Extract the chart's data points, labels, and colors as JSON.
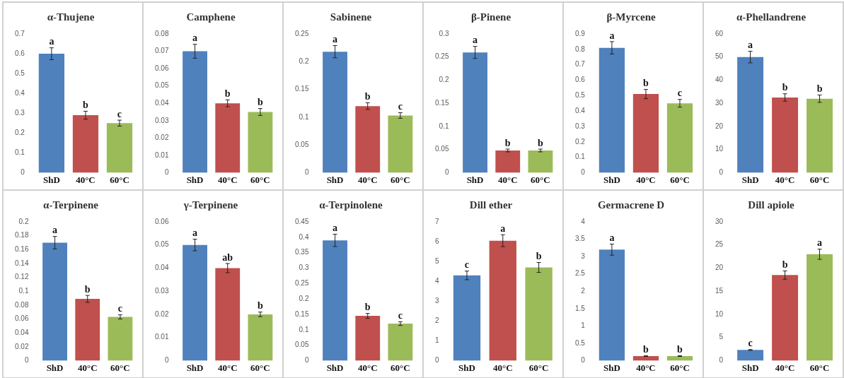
{
  "chart_data": [
    {
      "type": "bar",
      "title": "α-Thujene",
      "categories": [
        "ShD",
        "40°C",
        "60°C"
      ],
      "values": [
        0.6,
        0.29,
        0.25
      ],
      "errors": [
        0.03,
        0.02,
        0.015
      ],
      "colors": [
        "#4f81bd",
        "#c0504d",
        "#9bbb59"
      ],
      "ylim": [
        0,
        0.7
      ],
      "yticks": [
        0,
        0.1,
        0.2,
        0.3,
        0.4,
        0.5,
        0.6,
        0.7
      ],
      "annotations": [
        {
          "text": "a",
          "x": "ShD",
          "y": 0.63
        },
        {
          "text": "b",
          "x": "40°C",
          "y": 0.31
        },
        {
          "text": "c",
          "x": "60°C",
          "y": 0.265
        }
      ]
    },
    {
      "type": "bar",
      "title": "Camphene",
      "categories": [
        "ShD",
        "40°C",
        "60°C"
      ],
      "values": [
        0.07,
        0.04,
        0.035
      ],
      "errors": [
        0.004,
        0.002,
        0.002
      ],
      "colors": [
        "#4f81bd",
        "#c0504d",
        "#9bbb59"
      ],
      "ylim": [
        0,
        0.08
      ],
      "yticks": [
        0,
        0.01,
        0.02,
        0.03,
        0.04,
        0.05,
        0.06,
        0.07,
        0.08
      ],
      "annotations": [
        {
          "text": "a",
          "x": "ShD",
          "y": 0.074
        },
        {
          "text": "b",
          "x": "40°C",
          "y": 0.042
        },
        {
          "text": "b",
          "x": "60°C",
          "y": 0.037
        }
      ]
    },
    {
      "type": "bar",
      "title": "Sabinene",
      "categories": [
        "ShD",
        "40°C",
        "60°C"
      ],
      "values": [
        0.218,
        0.12,
        0.103
      ],
      "errors": [
        0.011,
        0.006,
        0.005
      ],
      "colors": [
        "#4f81bd",
        "#c0504d",
        "#9bbb59"
      ],
      "ylim": [
        0,
        0.25
      ],
      "yticks": [
        0,
        0.05,
        0.1,
        0.15,
        0.2,
        0.25
      ],
      "annotations": [
        {
          "text": "a",
          "x": "ShD",
          "y": 0.229
        },
        {
          "text": "b",
          "x": "40°C",
          "y": 0.126
        },
        {
          "text": "c",
          "x": "60°C",
          "y": 0.108
        }
      ]
    },
    {
      "type": "bar",
      "title": "β-Pinene",
      "categories": [
        "ShD",
        "40°C",
        "60°C"
      ],
      "values": [
        0.26,
        0.048,
        0.048
      ],
      "errors": [
        0.013,
        0.003,
        0.003
      ],
      "colors": [
        "#4f81bd",
        "#c0504d",
        "#9bbb59"
      ],
      "ylim": [
        0,
        0.3
      ],
      "yticks": [
        0,
        0.05,
        0.1,
        0.15,
        0.2,
        0.25,
        0.3
      ],
      "annotations": [
        {
          "text": "a",
          "x": "ShD",
          "y": 0.273
        },
        {
          "text": "b",
          "x": "40°C",
          "y": 0.051
        },
        {
          "text": "b",
          "x": "60°C",
          "y": 0.051
        }
      ]
    },
    {
      "type": "bar",
      "title": "β-Myrcene",
      "categories": [
        "ShD",
        "40°C",
        "60°C"
      ],
      "values": [
        0.81,
        0.51,
        0.45
      ],
      "errors": [
        0.04,
        0.03,
        0.025
      ],
      "colors": [
        "#4f81bd",
        "#c0504d",
        "#9bbb59"
      ],
      "ylim": [
        0,
        0.9
      ],
      "yticks": [
        0,
        0.1,
        0.2,
        0.3,
        0.4,
        0.5,
        0.6,
        0.7,
        0.8,
        0.9
      ],
      "annotations": [
        {
          "text": "a",
          "x": "ShD",
          "y": 0.85
        },
        {
          "text": "b",
          "x": "40°C",
          "y": 0.54
        },
        {
          "text": "c",
          "x": "60°C",
          "y": 0.475
        }
      ]
    },
    {
      "type": "bar",
      "title": "α-Phellandrene",
      "categories": [
        "ShD",
        "40°C",
        "60°C"
      ],
      "values": [
        50,
        32.5,
        32
      ],
      "errors": [
        2.5,
        1.6,
        1.6
      ],
      "colors": [
        "#4f81bd",
        "#c0504d",
        "#9bbb59"
      ],
      "ylim": [
        0,
        60
      ],
      "yticks": [
        0,
        10,
        20,
        30,
        40,
        50,
        60
      ],
      "annotations": [
        {
          "text": "a",
          "x": "ShD",
          "y": 52.5
        },
        {
          "text": "b",
          "x": "40°C",
          "y": 34.1
        },
        {
          "text": "b",
          "x": "60°C",
          "y": 33.6
        }
      ]
    },
    {
      "type": "bar",
      "title": "α-Terpinene",
      "categories": [
        "ShD",
        "40°C",
        "60°C"
      ],
      "values": [
        0.17,
        0.089,
        0.063
      ],
      "errors": [
        0.009,
        0.005,
        0.003
      ],
      "colors": [
        "#4f81bd",
        "#c0504d",
        "#9bbb59"
      ],
      "ylim": [
        0,
        0.2
      ],
      "yticks": [
        0,
        0.02,
        0.04,
        0.06,
        0.08,
        0.1,
        0.12,
        0.14,
        0.16,
        0.18,
        0.2
      ],
      "annotations": [
        {
          "text": "a",
          "x": "ShD",
          "y": 0.179
        },
        {
          "text": "b",
          "x": "40°C",
          "y": 0.094
        },
        {
          "text": "c",
          "x": "60°C",
          "y": 0.066
        }
      ]
    },
    {
      "type": "bar",
      "title": "γ-Terpinene",
      "categories": [
        "ShD",
        "40°C",
        "60°C"
      ],
      "values": [
        0.05,
        0.04,
        0.02
      ],
      "errors": [
        0.0025,
        0.002,
        0.001
      ],
      "colors": [
        "#4f81bd",
        "#c0504d",
        "#9bbb59"
      ],
      "ylim": [
        0,
        0.06
      ],
      "yticks": [
        0,
        0.01,
        0.02,
        0.03,
        0.04,
        0.05,
        0.06
      ],
      "annotations": [
        {
          "text": "a",
          "x": "ShD",
          "y": 0.0525
        },
        {
          "text": "ab",
          "x": "40°C",
          "y": 0.042
        },
        {
          "text": "b",
          "x": "60°C",
          "y": 0.021
        }
      ]
    },
    {
      "type": "bar",
      "title": "α-Terpinolene",
      "categories": [
        "ShD",
        "40°C",
        "60°C"
      ],
      "values": [
        0.39,
        0.145,
        0.12
      ],
      "errors": [
        0.02,
        0.008,
        0.006
      ],
      "colors": [
        "#4f81bd",
        "#c0504d",
        "#9bbb59"
      ],
      "ylim": [
        0,
        0.45
      ],
      "yticks": [
        0,
        0.05,
        0.1,
        0.15,
        0.2,
        0.25,
        0.3,
        0.35,
        0.4,
        0.45
      ],
      "annotations": [
        {
          "text": "a",
          "x": "ShD",
          "y": 0.41
        },
        {
          "text": "b",
          "x": "40°C",
          "y": 0.153
        },
        {
          "text": "c",
          "x": "60°C",
          "y": 0.126
        }
      ]
    },
    {
      "type": "bar",
      "title": "Dill ether",
      "categories": [
        "ShD",
        "40°C",
        "60°C"
      ],
      "values": [
        4.3,
        6.05,
        4.7
      ],
      "errors": [
        0.22,
        0.3,
        0.25
      ],
      "colors": [
        "#4f81bd",
        "#c0504d",
        "#9bbb59"
      ],
      "ylim": [
        0,
        7
      ],
      "yticks": [
        0,
        1,
        2,
        3,
        4,
        5,
        6,
        7
      ],
      "annotations": [
        {
          "text": "c",
          "x": "ShD",
          "y": 4.52
        },
        {
          "text": "a",
          "x": "40°C",
          "y": 6.35
        },
        {
          "text": "b",
          "x": "60°C",
          "y": 4.95
        }
      ]
    },
    {
      "type": "bar",
      "title": "Germacrene D",
      "categories": [
        "ShD",
        "40°C",
        "60°C"
      ],
      "values": [
        3.2,
        0.13,
        0.13
      ],
      "errors": [
        0.16,
        0.01,
        0.01
      ],
      "colors": [
        "#4f81bd",
        "#c0504d",
        "#9bbb59"
      ],
      "ylim": [
        0,
        4
      ],
      "yticks": [
        0,
        0.5,
        1,
        1.5,
        2,
        2.5,
        3,
        3.5,
        4
      ],
      "annotations": [
        {
          "text": "a",
          "x": "ShD",
          "y": 3.36
        },
        {
          "text": "b",
          "x": "40°C",
          "y": 0.14
        },
        {
          "text": "b",
          "x": "60°C",
          "y": 0.14
        }
      ]
    },
    {
      "type": "bar",
      "title": "Dill apiole",
      "categories": [
        "ShD",
        "40°C",
        "60°C"
      ],
      "values": [
        2.3,
        18.5,
        23
      ],
      "errors": [
        0.1,
        0.9,
        1.1
      ],
      "colors": [
        "#4f81bd",
        "#c0504d",
        "#9bbb59"
      ],
      "ylim": [
        0,
        30
      ],
      "yticks": [
        0,
        5,
        10,
        15,
        20,
        25,
        30
      ],
      "annotations": [
        {
          "text": "c",
          "x": "ShD",
          "y": 2.4
        },
        {
          "text": "b",
          "x": "40°C",
          "y": 19.4
        },
        {
          "text": "a",
          "x": "60°C",
          "y": 24.1
        }
      ]
    }
  ]
}
